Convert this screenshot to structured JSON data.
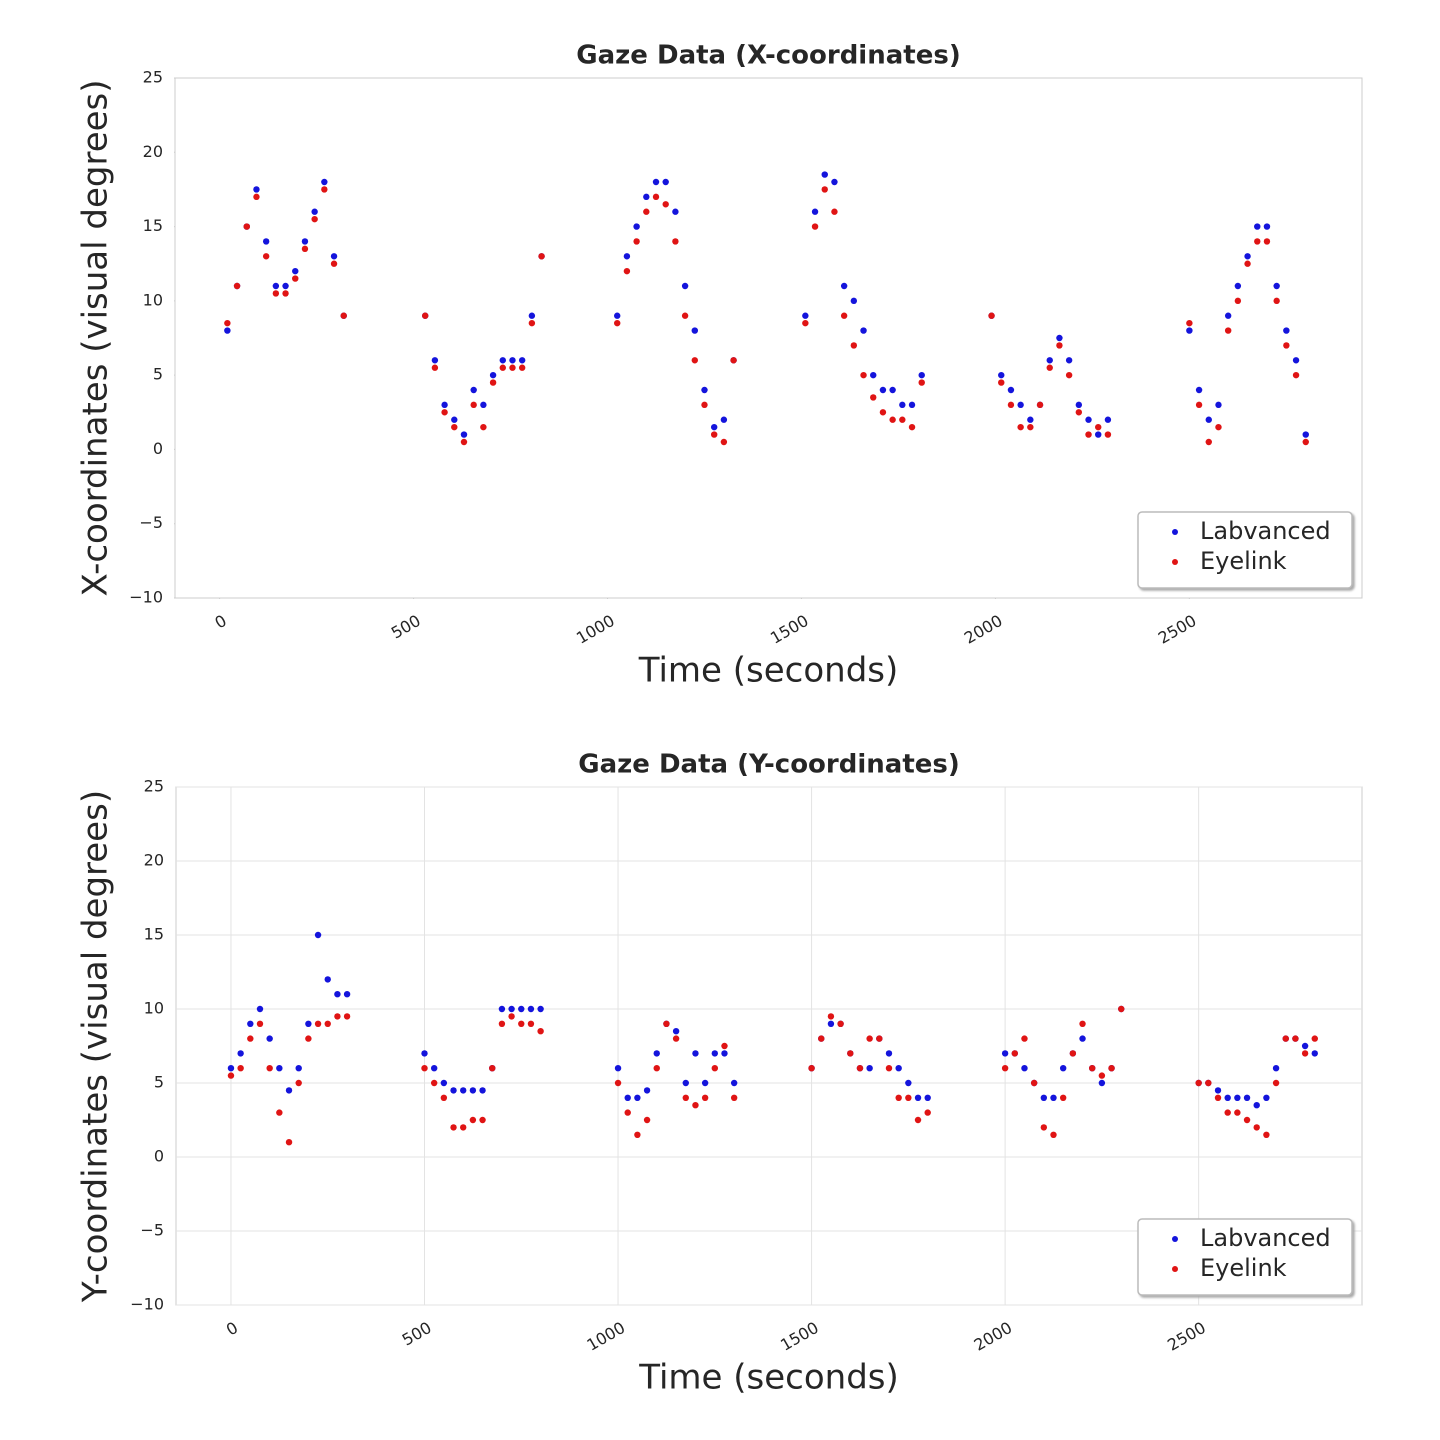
{
  "chart_data": [
    {
      "type": "scatter",
      "title": "Gaze Data (X-coordinates)",
      "x_label": "Time (seconds)",
      "y_label": "X-coordinates (visual degrees)",
      "x": [
        20,
        45,
        70,
        95,
        120,
        145,
        170,
        195,
        220,
        245,
        270,
        295,
        320,
        530,
        555,
        580,
        605,
        630,
        655,
        680,
        705,
        730,
        755,
        780,
        805,
        830,
        1025,
        1050,
        1075,
        1100,
        1125,
        1150,
        1175,
        1200,
        1225,
        1250,
        1275,
        1300,
        1325,
        1510,
        1535,
        1560,
        1585,
        1610,
        1635,
        1660,
        1685,
        1710,
        1735,
        1760,
        1785,
        1810,
        1990,
        2015,
        2040,
        2065,
        2090,
        2115,
        2140,
        2165,
        2190,
        2215,
        2240,
        2265,
        2290,
        2500,
        2525,
        2550,
        2575,
        2600,
        2625,
        2650,
        2675,
        2700,
        2725,
        2750,
        2775,
        2800
      ],
      "series": [
        {
          "name": "Labvanced",
          "color": "#1414dc",
          "values": [
            8,
            11,
            15,
            17.5,
            14,
            11,
            11,
            12,
            14,
            16,
            18,
            13,
            9,
            9,
            6,
            3,
            2,
            1,
            4,
            3,
            5,
            6,
            6,
            6,
            9,
            13,
            9,
            13,
            15,
            17,
            18,
            18,
            16,
            11,
            8,
            4,
            1.5,
            2,
            6,
            9,
            16,
            18.5,
            18,
            11,
            10,
            8,
            5,
            4,
            4,
            3,
            3,
            5,
            9,
            5,
            4,
            3,
            2,
            3,
            6,
            7.5,
            6,
            3,
            2,
            1,
            2,
            8,
            4,
            2,
            3,
            9,
            11,
            13,
            15,
            15,
            11,
            8,
            6,
            1
          ]
        },
        {
          "name": "Eyelink",
          "color": "#e01414",
          "values": [
            8.5,
            11,
            15,
            17,
            13,
            10.5,
            10.5,
            11.5,
            13.5,
            15.5,
            17.5,
            12.5,
            9,
            9,
            5.5,
            2.5,
            1.5,
            0.5,
            3,
            1.5,
            4.5,
            5.5,
            5.5,
            5.5,
            8.5,
            13,
            8.5,
            12,
            14,
            16,
            17,
            16.5,
            14,
            9,
            6,
            3,
            1,
            0.5,
            6,
            8.5,
            15,
            17.5,
            16,
            9,
            7,
            5,
            3.5,
            2.5,
            2,
            2,
            1.5,
            4.5,
            9,
            4.5,
            3,
            1.5,
            1.5,
            3,
            5.5,
            7,
            5,
            2.5,
            1,
            1.5,
            1,
            8.5,
            3,
            0.5,
            1.5,
            8,
            10,
            12.5,
            14,
            14,
            10,
            7,
            5,
            0.5
          ]
        }
      ],
      "xlim": [
        -115,
        2945
      ],
      "xticks": [
        0,
        500,
        1000,
        1500,
        2000,
        2500
      ],
      "ylim": [
        -10,
        25
      ],
      "yticks": [
        {
          "value": -10,
          "label": "−10"
        },
        {
          "value": -5,
          "label": "−5"
        },
        0,
        5,
        10,
        15,
        20,
        25
      ],
      "grid": false,
      "legend": "lower right"
    },
    {
      "type": "scatter",
      "title": "Gaze Data (Y-coordinates)",
      "x_label": "Time (seconds)",
      "y_label": "Y-coordinates (visual degrees)",
      "x": [
        0,
        25,
        50,
        75,
        100,
        125,
        150,
        175,
        200,
        225,
        250,
        275,
        300,
        500,
        525,
        550,
        575,
        600,
        625,
        650,
        675,
        700,
        725,
        750,
        775,
        800,
        1000,
        1025,
        1050,
        1075,
        1100,
        1125,
        1150,
        1175,
        1200,
        1225,
        1250,
        1275,
        1300,
        1500,
        1525,
        1550,
        1575,
        1600,
        1625,
        1650,
        1675,
        1700,
        1725,
        1750,
        1775,
        1800,
        2000,
        2025,
        2050,
        2075,
        2100,
        2125,
        2150,
        2175,
        2200,
        2225,
        2250,
        2275,
        2300,
        2500,
        2525,
        2550,
        2575,
        2600,
        2625,
        2650,
        2675,
        2700,
        2725,
        2750,
        2775,
        2800
      ],
      "series": [
        {
          "name": "Labvanced",
          "color": "#1414dc",
          "values": [
            6,
            7,
            9,
            10,
            8,
            6,
            4.5,
            6,
            9,
            15,
            12,
            11,
            11,
            7,
            6,
            5,
            4.5,
            4.5,
            4.5,
            4.5,
            6,
            10,
            10,
            10,
            10,
            10,
            6,
            4,
            4,
            4.5,
            7,
            9,
            8.5,
            5,
            7,
            5,
            7,
            7,
            5,
            6,
            8,
            9,
            9,
            7,
            6,
            6,
            8,
            7,
            6,
            5,
            4,
            4,
            7,
            7,
            6,
            5,
            4,
            4,
            6,
            7,
            8,
            6,
            5,
            6,
            10,
            5,
            5,
            4.5,
            4,
            4,
            4,
            3.5,
            4,
            6,
            8,
            8,
            7.5,
            7
          ]
        },
        {
          "name": "Eyelink",
          "color": "#e01414",
          "values": [
            5.5,
            6,
            8,
            9,
            6,
            3,
            1,
            5,
            8,
            9,
            9,
            9.5,
            9.5,
            6,
            5,
            4,
            2,
            2,
            2.5,
            2.5,
            6,
            9,
            9.5,
            9,
            9,
            8.5,
            5,
            3,
            1.5,
            2.5,
            6,
            9,
            8,
            4,
            3.5,
            4,
            6,
            7.5,
            4,
            6,
            8,
            9.5,
            9,
            7,
            6,
            8,
            8,
            6,
            4,
            4,
            2.5,
            3,
            6,
            7,
            8,
            5,
            2,
            1.5,
            4,
            7,
            9,
            6,
            5.5,
            6,
            10,
            5,
            5,
            4,
            3,
            3,
            2.5,
            2,
            1.5,
            5,
            8,
            8,
            7,
            8
          ]
        }
      ],
      "xlim": [
        -142,
        2922
      ],
      "xticks": [
        0,
        500,
        1000,
        1500,
        2000,
        2500
      ],
      "ylim": [
        -10,
        25
      ],
      "yticks": [
        {
          "value": -10,
          "label": "−10"
        },
        {
          "value": -5,
          "label": "−5"
        },
        0,
        5,
        10,
        15,
        20,
        25
      ],
      "grid": true,
      "legend": "lower right"
    }
  ]
}
